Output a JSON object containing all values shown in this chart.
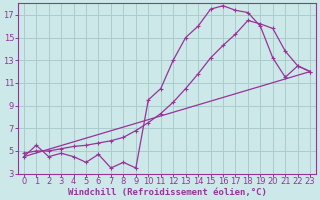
{
  "bg_color": "#cce8e8",
  "grid_color": "#aacccc",
  "line_color": "#993399",
  "marker_color": "#993399",
  "xlabel": "Windchill (Refroidissement éolien,°C)",
  "xlabel_color": "#993399",
  "tick_color": "#993399",
  "xlim": [
    -0.5,
    23.5
  ],
  "ylim": [
    3,
    18
  ],
  "yticks": [
    3,
    5,
    7,
    9,
    11,
    13,
    15,
    17
  ],
  "xticks": [
    0,
    1,
    2,
    3,
    4,
    5,
    6,
    7,
    8,
    9,
    10,
    11,
    12,
    13,
    14,
    15,
    16,
    17,
    18,
    19,
    20,
    21,
    22,
    23
  ],
  "line1_x": [
    0,
    1,
    2,
    3,
    4,
    5,
    6,
    7,
    8,
    9,
    10,
    11,
    12,
    13,
    14,
    15,
    16,
    17,
    18,
    19,
    20,
    21,
    22,
    23
  ],
  "line1_y": [
    4.5,
    5.5,
    4.5,
    4.8,
    4.5,
    4.0,
    4.7,
    3.5,
    4.0,
    3.5,
    9.5,
    10.5,
    13.0,
    15.0,
    16.0,
    17.5,
    17.8,
    17.4,
    17.2,
    16.0,
    13.2,
    11.5,
    12.5,
    12.0
  ],
  "line2_x": [
    0,
    23
  ],
  "line2_y": [
    4.5,
    12.0
  ],
  "line3_x": [
    0,
    1,
    2,
    3,
    4,
    5,
    6,
    7,
    8,
    9,
    10,
    11,
    12,
    13,
    14,
    15,
    16,
    17,
    18,
    19,
    20,
    21,
    22,
    23
  ],
  "line3_y": [
    4.8,
    5.0,
    5.0,
    5.2,
    5.4,
    5.5,
    5.7,
    5.9,
    6.2,
    6.8,
    7.5,
    8.3,
    9.3,
    10.5,
    11.8,
    13.2,
    14.3,
    15.3,
    16.5,
    16.2,
    15.8,
    13.8,
    12.5,
    12.0
  ],
  "fontsize_label": 6.5,
  "fontsize_tick": 6.0
}
